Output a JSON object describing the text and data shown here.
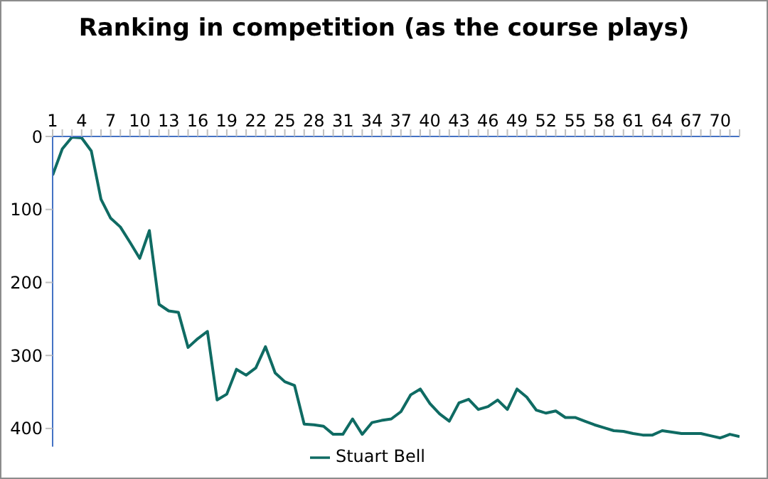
{
  "chart_data": {
    "type": "line",
    "title": "Ranking in competition (as the course plays)",
    "x": [
      1,
      2,
      3,
      4,
      5,
      6,
      7,
      8,
      9,
      10,
      11,
      12,
      13,
      14,
      15,
      16,
      17,
      18,
      19,
      20,
      21,
      22,
      23,
      24,
      25,
      26,
      27,
      28,
      29,
      30,
      31,
      32,
      33,
      34,
      35,
      36,
      37,
      38,
      39,
      40,
      41,
      42,
      43,
      44,
      45,
      46,
      47,
      48,
      49,
      50,
      51,
      52,
      53,
      54,
      55,
      56,
      57,
      58,
      59,
      60,
      61,
      62,
      63,
      64,
      65,
      66,
      67,
      68,
      69,
      70,
      71,
      72
    ],
    "series": [
      {
        "name": "Stuart Bell",
        "color": "#0f6b63",
        "values": [
          53,
          17,
          1,
          2,
          20,
          86,
          112,
          124,
          145,
          167,
          129,
          230,
          239,
          241,
          289,
          277,
          267,
          361,
          353,
          319,
          327,
          317,
          288,
          324,
          336,
          341,
          394,
          395,
          397,
          408,
          408,
          387,
          408,
          392,
          389,
          387,
          377,
          354,
          346,
          366,
          380,
          390,
          365,
          360,
          374,
          370,
          361,
          374,
          346,
          357,
          375,
          379,
          376,
          385,
          385,
          390,
          395,
          399,
          403,
          404,
          407,
          409,
          409,
          403,
          405,
          407,
          407,
          407,
          410,
          413,
          408,
          411
        ]
      }
    ],
    "xlim": [
      1,
      72
    ],
    "xticks": [
      1,
      {
        "value": 2,
        "label": null
      },
      {
        "value": 3,
        "label": null
      },
      4,
      {
        "value": 5,
        "label": null
      },
      {
        "value": 6,
        "label": null
      },
      7,
      {
        "value": 8,
        "label": null
      },
      {
        "value": 9,
        "label": null
      },
      10,
      {
        "value": 11,
        "label": null
      },
      {
        "value": 12,
        "label": null
      },
      13,
      {
        "value": 14,
        "label": null
      },
      {
        "value": 15,
        "label": null
      },
      16,
      {
        "value": 17,
        "label": null
      },
      {
        "value": 18,
        "label": null
      },
      19,
      {
        "value": 20,
        "label": null
      },
      {
        "value": 21,
        "label": null
      },
      22,
      {
        "value": 23,
        "label": null
      },
      {
        "value": 24,
        "label": null
      },
      25,
      {
        "value": 26,
        "label": null
      },
      {
        "value": 27,
        "label": null
      },
      28,
      {
        "value": 29,
        "label": null
      },
      {
        "value": 30,
        "label": null
      },
      31,
      {
        "value": 32,
        "label": null
      },
      {
        "value": 33,
        "label": null
      },
      34,
      {
        "value": 35,
        "label": null
      },
      {
        "value": 36,
        "label": null
      },
      37,
      {
        "value": 38,
        "label": null
      },
      {
        "value": 39,
        "label": null
      },
      40,
      {
        "value": 41,
        "label": null
      },
      {
        "value": 42,
        "label": null
      },
      43,
      {
        "value": 44,
        "label": null
      },
      {
        "value": 45,
        "label": null
      },
      46,
      {
        "value": 47,
        "label": null
      },
      {
        "value": 48,
        "label": null
      },
      49,
      {
        "value": 50,
        "label": null
      },
      {
        "value": 51,
        "label": null
      },
      52,
      {
        "value": 53,
        "label": null
      },
      {
        "value": 54,
        "label": null
      },
      55,
      {
        "value": 56,
        "label": null
      },
      {
        "value": 57,
        "label": null
      },
      58,
      {
        "value": 59,
        "label": null
      },
      {
        "value": 60,
        "label": null
      },
      61,
      {
        "value": 62,
        "label": null
      },
      {
        "value": 63,
        "label": null
      },
      64,
      {
        "value": 65,
        "label": null
      },
      {
        "value": 66,
        "label": null
      },
      67,
      {
        "value": 68,
        "label": null
      },
      {
        "value": 69,
        "label": null
      },
      70,
      {
        "value": 71,
        "label": null
      },
      {
        "value": 72,
        "label": null
      }
    ],
    "ylim": [
      425,
      0
    ],
    "yticks": [
      0,
      100,
      200,
      300,
      400
    ],
    "grid": false,
    "legend": "bottom",
    "marker": "none",
    "line_style": "solid"
  }
}
